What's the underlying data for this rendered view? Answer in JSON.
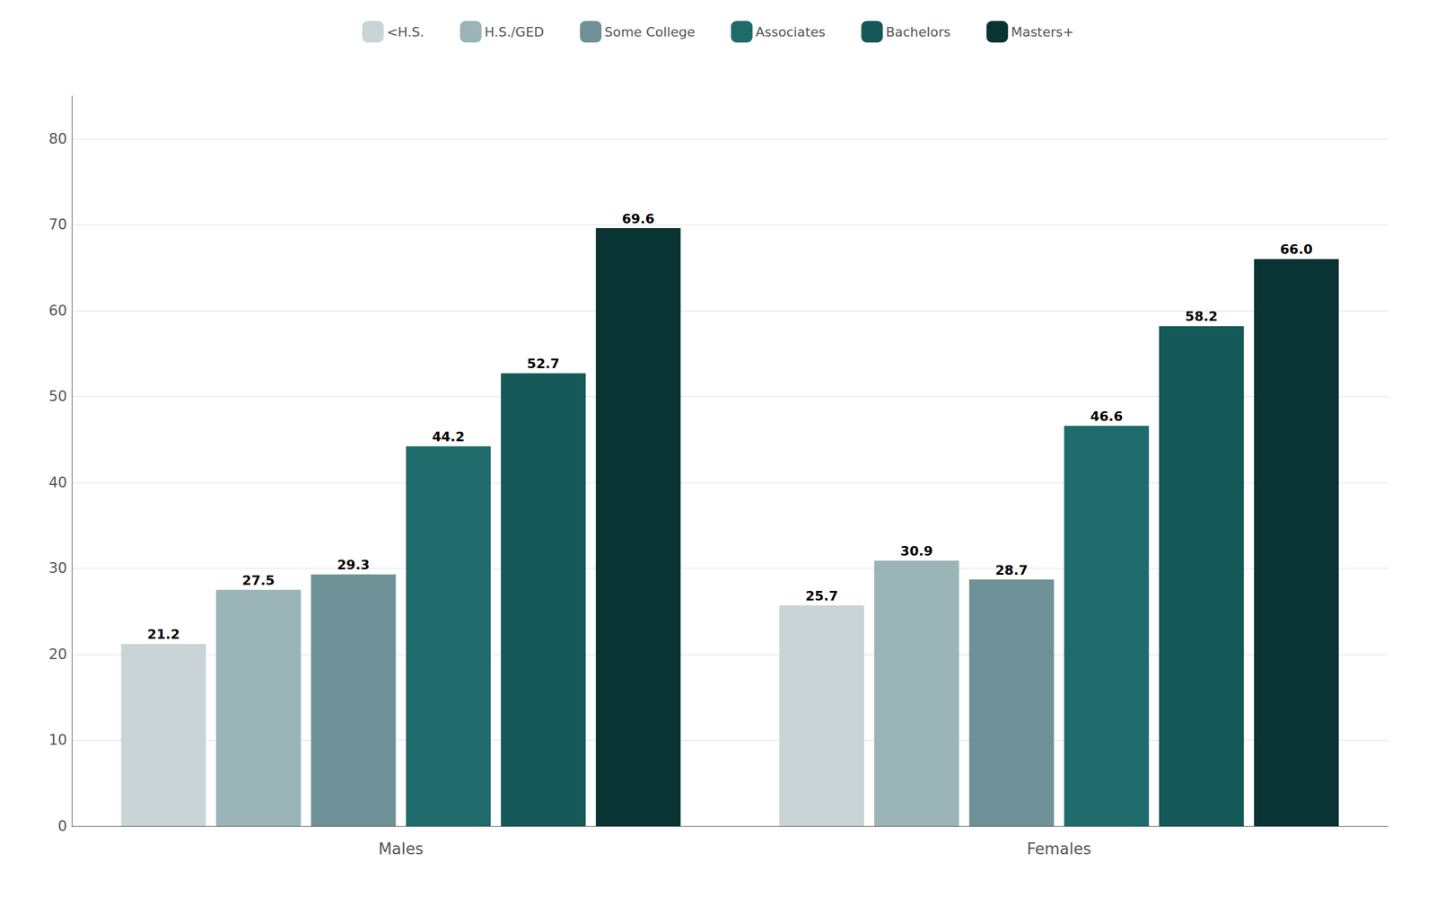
{
  "chart_data": {
    "type": "bar",
    "categories": [
      "Males",
      "Females"
    ],
    "series": [
      {
        "name": "<H.S.",
        "color": "#c8d4d6",
        "values": [
          21.2,
          25.7
        ],
        "value_labels": [
          "21.2",
          "25.7"
        ]
      },
      {
        "name": "H.S./GED",
        "color": "#9ab4b7",
        "values": [
          27.5,
          30.9
        ],
        "value_labels": [
          "27.5",
          "30.9"
        ]
      },
      {
        "name": "Some College",
        "color": "#6d9196",
        "values": [
          29.3,
          28.7
        ],
        "value_labels": [
          "29.3",
          "28.7"
        ]
      },
      {
        "name": "Associates",
        "color": "#1f6b6b",
        "values": [
          44.2,
          46.6
        ],
        "value_labels": [
          "44.2",
          "46.6"
        ]
      },
      {
        "name": "Bachelors",
        "color": "#155858",
        "values": [
          52.7,
          58.2
        ],
        "value_labels": [
          "52.7",
          "58.2"
        ]
      },
      {
        "name": "Masters+",
        "color": "#0a3333",
        "values": [
          69.6,
          66.0
        ],
        "value_labels": [
          "69.6",
          "66.0"
        ]
      }
    ],
    "ylim": [
      0,
      85
    ],
    "yticks": [
      0,
      10,
      20,
      30,
      40,
      50,
      60,
      70,
      80
    ],
    "grid": true,
    "legend": "top",
    "data_labels": true
  }
}
